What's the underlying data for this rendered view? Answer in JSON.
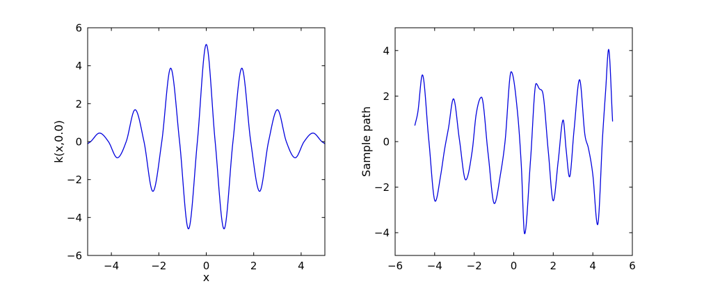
{
  "figure": {
    "background": "#ffffff",
    "axes_color": "#000000",
    "line_color": "#0000dd"
  },
  "chart_data": [
    {
      "id": "kernel-plot",
      "type": "line",
      "title": "",
      "xlabel": "x",
      "ylabel": "k(x,0.0)",
      "xlim": [
        -5,
        5
      ],
      "ylim": [
        -6,
        6
      ],
      "xticks": [
        -4,
        -2,
        0,
        2,
        4
      ],
      "yticks": [
        -6,
        -4,
        -2,
        0,
        2,
        4,
        6
      ],
      "grid": false,
      "points": [
        [
          -5.0,
          -0.11
        ],
        [
          -4.875,
          0.0
        ],
        [
          -4.5,
          0.45
        ],
        [
          -4.125,
          0.0
        ],
        [
          -3.75,
          -0.85
        ],
        [
          -3.375,
          0.0
        ],
        [
          -3.0,
          1.68
        ],
        [
          -2.625,
          0.0
        ],
        [
          -2.25,
          -2.62
        ],
        [
          -1.875,
          0.0
        ],
        [
          -1.5,
          3.87
        ],
        [
          -1.125,
          0.0
        ],
        [
          -0.75,
          -4.6
        ],
        [
          -0.375,
          0.0
        ],
        [
          0.0,
          5.12
        ],
        [
          0.375,
          0.0
        ],
        [
          0.75,
          -4.6
        ],
        [
          1.125,
          0.0
        ],
        [
          1.5,
          3.87
        ],
        [
          1.875,
          0.0
        ],
        [
          2.25,
          -2.62
        ],
        [
          2.625,
          0.0
        ],
        [
          3.0,
          1.68
        ],
        [
          3.375,
          0.0
        ],
        [
          3.75,
          -0.85
        ],
        [
          4.125,
          0.0
        ],
        [
          4.5,
          0.45
        ],
        [
          4.875,
          0.0
        ],
        [
          5.0,
          -0.11
        ]
      ]
    },
    {
      "id": "sample-path-plot",
      "type": "line",
      "title": "",
      "xlabel": "",
      "ylabel": "Sample path",
      "xlim": [
        -6,
        6
      ],
      "ylim": [
        -5,
        5
      ],
      "xticks": [
        -6,
        -4,
        -2,
        0,
        2,
        4,
        6
      ],
      "yticks": [
        -4,
        -2,
        0,
        2,
        4
      ],
      "grid": false,
      "points": [
        [
          -5.0,
          0.72
        ],
        [
          -4.85,
          1.3
        ],
        [
          -4.62,
          2.93
        ],
        [
          -4.3,
          0.1
        ],
        [
          -3.97,
          -2.62
        ],
        [
          -3.7,
          -1.5
        ],
        [
          -3.5,
          -0.35
        ],
        [
          -3.3,
          0.6
        ],
        [
          -3.05,
          1.88
        ],
        [
          -2.75,
          0.1
        ],
        [
          -2.43,
          -1.68
        ],
        [
          -2.1,
          -0.4
        ],
        [
          -1.9,
          1.2
        ],
        [
          -1.63,
          1.95
        ],
        [
          -1.3,
          -0.5
        ],
        [
          -0.98,
          -2.72
        ],
        [
          -0.67,
          -1.43
        ],
        [
          -0.44,
          0.0
        ],
        [
          -0.13,
          3.07
        ],
        [
          0.2,
          1.2
        ],
        [
          0.38,
          -1.0
        ],
        [
          0.55,
          -4.05
        ],
        [
          0.85,
          -0.8
        ],
        [
          1.13,
          2.55
        ],
        [
          1.32,
          2.3
        ],
        [
          1.45,
          2.2
        ],
        [
          1.75,
          -0.45
        ],
        [
          2.0,
          -2.6
        ],
        [
          2.25,
          -0.85
        ],
        [
          2.5,
          0.95
        ],
        [
          2.65,
          -0.35
        ],
        [
          2.82,
          -1.55
        ],
        [
          3.05,
          0.5
        ],
        [
          3.33,
          2.72
        ],
        [
          3.6,
          0.3
        ],
        [
          3.78,
          -0.3
        ],
        [
          4.0,
          -1.45
        ],
        [
          4.24,
          -3.65
        ],
        [
          4.5,
          0.3
        ],
        [
          4.65,
          2.25
        ],
        [
          4.8,
          4.05
        ],
        [
          5.0,
          0.9
        ]
      ]
    }
  ]
}
